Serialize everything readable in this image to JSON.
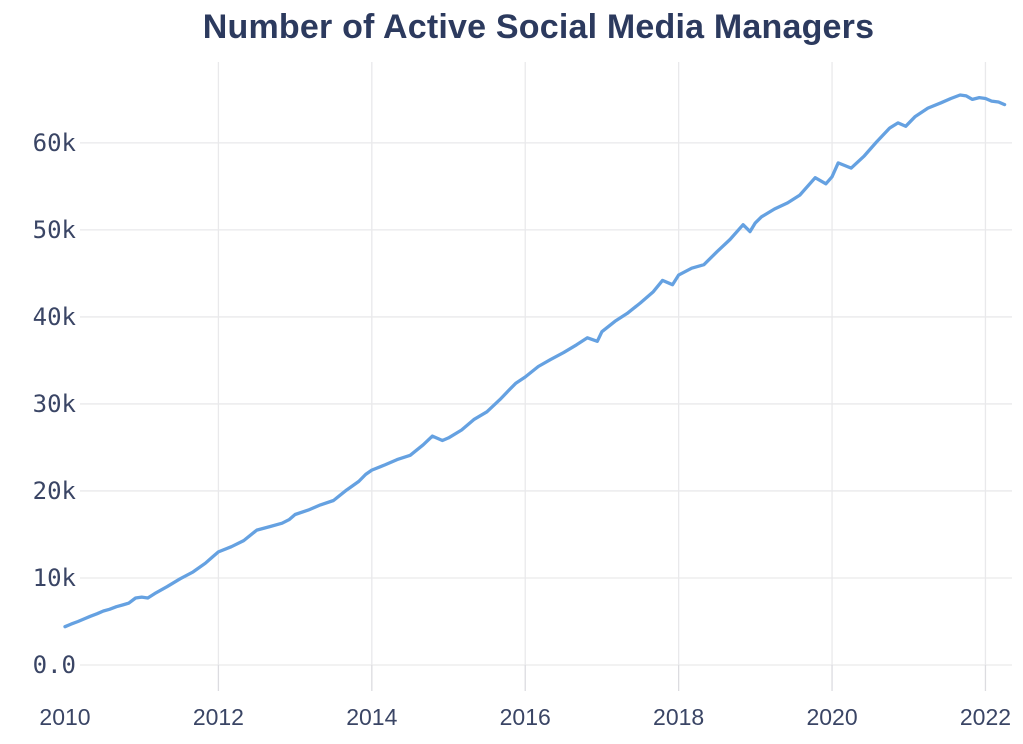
{
  "page": {
    "background": "#ffffff"
  },
  "chart_data": {
    "type": "line",
    "title": "Number of Active Social Media Managers",
    "xlabel": "",
    "ylabel": "",
    "unit": "thousands of managers",
    "grid": true,
    "legend": "none",
    "xlim": [
      2010,
      2022.32
    ],
    "ylim": [
      0,
      67.8
    ],
    "colors": {
      "title": "#2c3a5e",
      "axis_labels": "#3a4565",
      "line": "#65a1e1",
      "grid": "#e9e9eb",
      "tick": "#dcdce0"
    },
    "x_ticks": [
      {
        "v": 2010,
        "label": "2010",
        "grid": false
      },
      {
        "v": 2012,
        "label": "2012",
        "grid": true
      },
      {
        "v": 2014,
        "label": "2014",
        "grid": true
      },
      {
        "v": 2016,
        "label": "2016",
        "grid": true
      },
      {
        "v": 2018,
        "label": "2018",
        "grid": true
      },
      {
        "v": 2020,
        "label": "2020",
        "grid": true
      },
      {
        "v": 2022,
        "label": "2022",
        "grid": true
      }
    ],
    "y_ticks": [
      {
        "v": 0,
        "label": "0.0"
      },
      {
        "v": 10,
        "label": "10k"
      },
      {
        "v": 20,
        "label": "20k"
      },
      {
        "v": 30,
        "label": "30k"
      },
      {
        "v": 40,
        "label": "40k"
      },
      {
        "v": 50,
        "label": "50k"
      },
      {
        "v": 60,
        "label": "60k"
      }
    ],
    "series": [
      {
        "name": "Active Social Media Managers",
        "points": [
          [
            2010.0,
            4.4
          ],
          [
            2010.08,
            4.7
          ],
          [
            2010.17,
            5.0
          ],
          [
            2010.25,
            5.3
          ],
          [
            2010.33,
            5.6
          ],
          [
            2010.42,
            5.9
          ],
          [
            2010.5,
            6.2
          ],
          [
            2010.58,
            6.4
          ],
          [
            2010.67,
            6.7
          ],
          [
            2010.75,
            6.9
          ],
          [
            2010.83,
            7.1
          ],
          [
            2010.92,
            7.7
          ],
          [
            2011.0,
            7.8
          ],
          [
            2011.08,
            7.7
          ],
          [
            2011.17,
            8.2
          ],
          [
            2011.33,
            9.0
          ],
          [
            2011.5,
            9.9
          ],
          [
            2011.67,
            10.7
          ],
          [
            2011.83,
            11.7
          ],
          [
            2011.92,
            12.4
          ],
          [
            2012.0,
            13.0
          ],
          [
            2012.17,
            13.6
          ],
          [
            2012.33,
            14.3
          ],
          [
            2012.5,
            15.5
          ],
          [
            2012.67,
            15.9
          ],
          [
            2012.83,
            16.3
          ],
          [
            2012.92,
            16.7
          ],
          [
            2013.0,
            17.3
          ],
          [
            2013.17,
            17.8
          ],
          [
            2013.33,
            18.4
          ],
          [
            2013.5,
            18.9
          ],
          [
            2013.67,
            20.1
          ],
          [
            2013.83,
            21.1
          ],
          [
            2013.92,
            21.9
          ],
          [
            2014.0,
            22.4
          ],
          [
            2014.17,
            23.0
          ],
          [
            2014.33,
            23.6
          ],
          [
            2014.5,
            24.1
          ],
          [
            2014.67,
            25.3
          ],
          [
            2014.79,
            26.3
          ],
          [
            2014.92,
            25.8
          ],
          [
            2015.0,
            26.1
          ],
          [
            2015.17,
            27.0
          ],
          [
            2015.33,
            28.2
          ],
          [
            2015.5,
            29.1
          ],
          [
            2015.67,
            30.5
          ],
          [
            2015.79,
            31.6
          ],
          [
            2015.88,
            32.4
          ],
          [
            2016.0,
            33.1
          ],
          [
            2016.17,
            34.3
          ],
          [
            2016.33,
            35.1
          ],
          [
            2016.5,
            35.9
          ],
          [
            2016.67,
            36.8
          ],
          [
            2016.81,
            37.6
          ],
          [
            2016.94,
            37.2
          ],
          [
            2017.0,
            38.3
          ],
          [
            2017.17,
            39.5
          ],
          [
            2017.33,
            40.4
          ],
          [
            2017.5,
            41.6
          ],
          [
            2017.67,
            42.9
          ],
          [
            2017.79,
            44.2
          ],
          [
            2017.92,
            43.7
          ],
          [
            2018.0,
            44.8
          ],
          [
            2018.17,
            45.6
          ],
          [
            2018.33,
            46.0
          ],
          [
            2018.5,
            47.5
          ],
          [
            2018.67,
            48.9
          ],
          [
            2018.84,
            50.6
          ],
          [
            2018.93,
            49.8
          ],
          [
            2019.0,
            50.8
          ],
          [
            2019.08,
            51.5
          ],
          [
            2019.25,
            52.4
          ],
          [
            2019.42,
            53.1
          ],
          [
            2019.58,
            54.0
          ],
          [
            2019.78,
            56.0
          ],
          [
            2019.92,
            55.3
          ],
          [
            2020.0,
            56.1
          ],
          [
            2020.08,
            57.7
          ],
          [
            2020.25,
            57.1
          ],
          [
            2020.42,
            58.5
          ],
          [
            2020.58,
            60.1
          ],
          [
            2020.75,
            61.7
          ],
          [
            2020.86,
            62.3
          ],
          [
            2020.96,
            61.9
          ],
          [
            2021.08,
            63.0
          ],
          [
            2021.25,
            64.0
          ],
          [
            2021.42,
            64.6
          ],
          [
            2021.55,
            65.1
          ],
          [
            2021.67,
            65.5
          ],
          [
            2021.75,
            65.4
          ],
          [
            2021.83,
            65.0
          ],
          [
            2021.92,
            65.2
          ],
          [
            2022.0,
            65.1
          ],
          [
            2022.08,
            64.8
          ],
          [
            2022.17,
            64.7
          ],
          [
            2022.25,
            64.4
          ]
        ]
      }
    ]
  }
}
